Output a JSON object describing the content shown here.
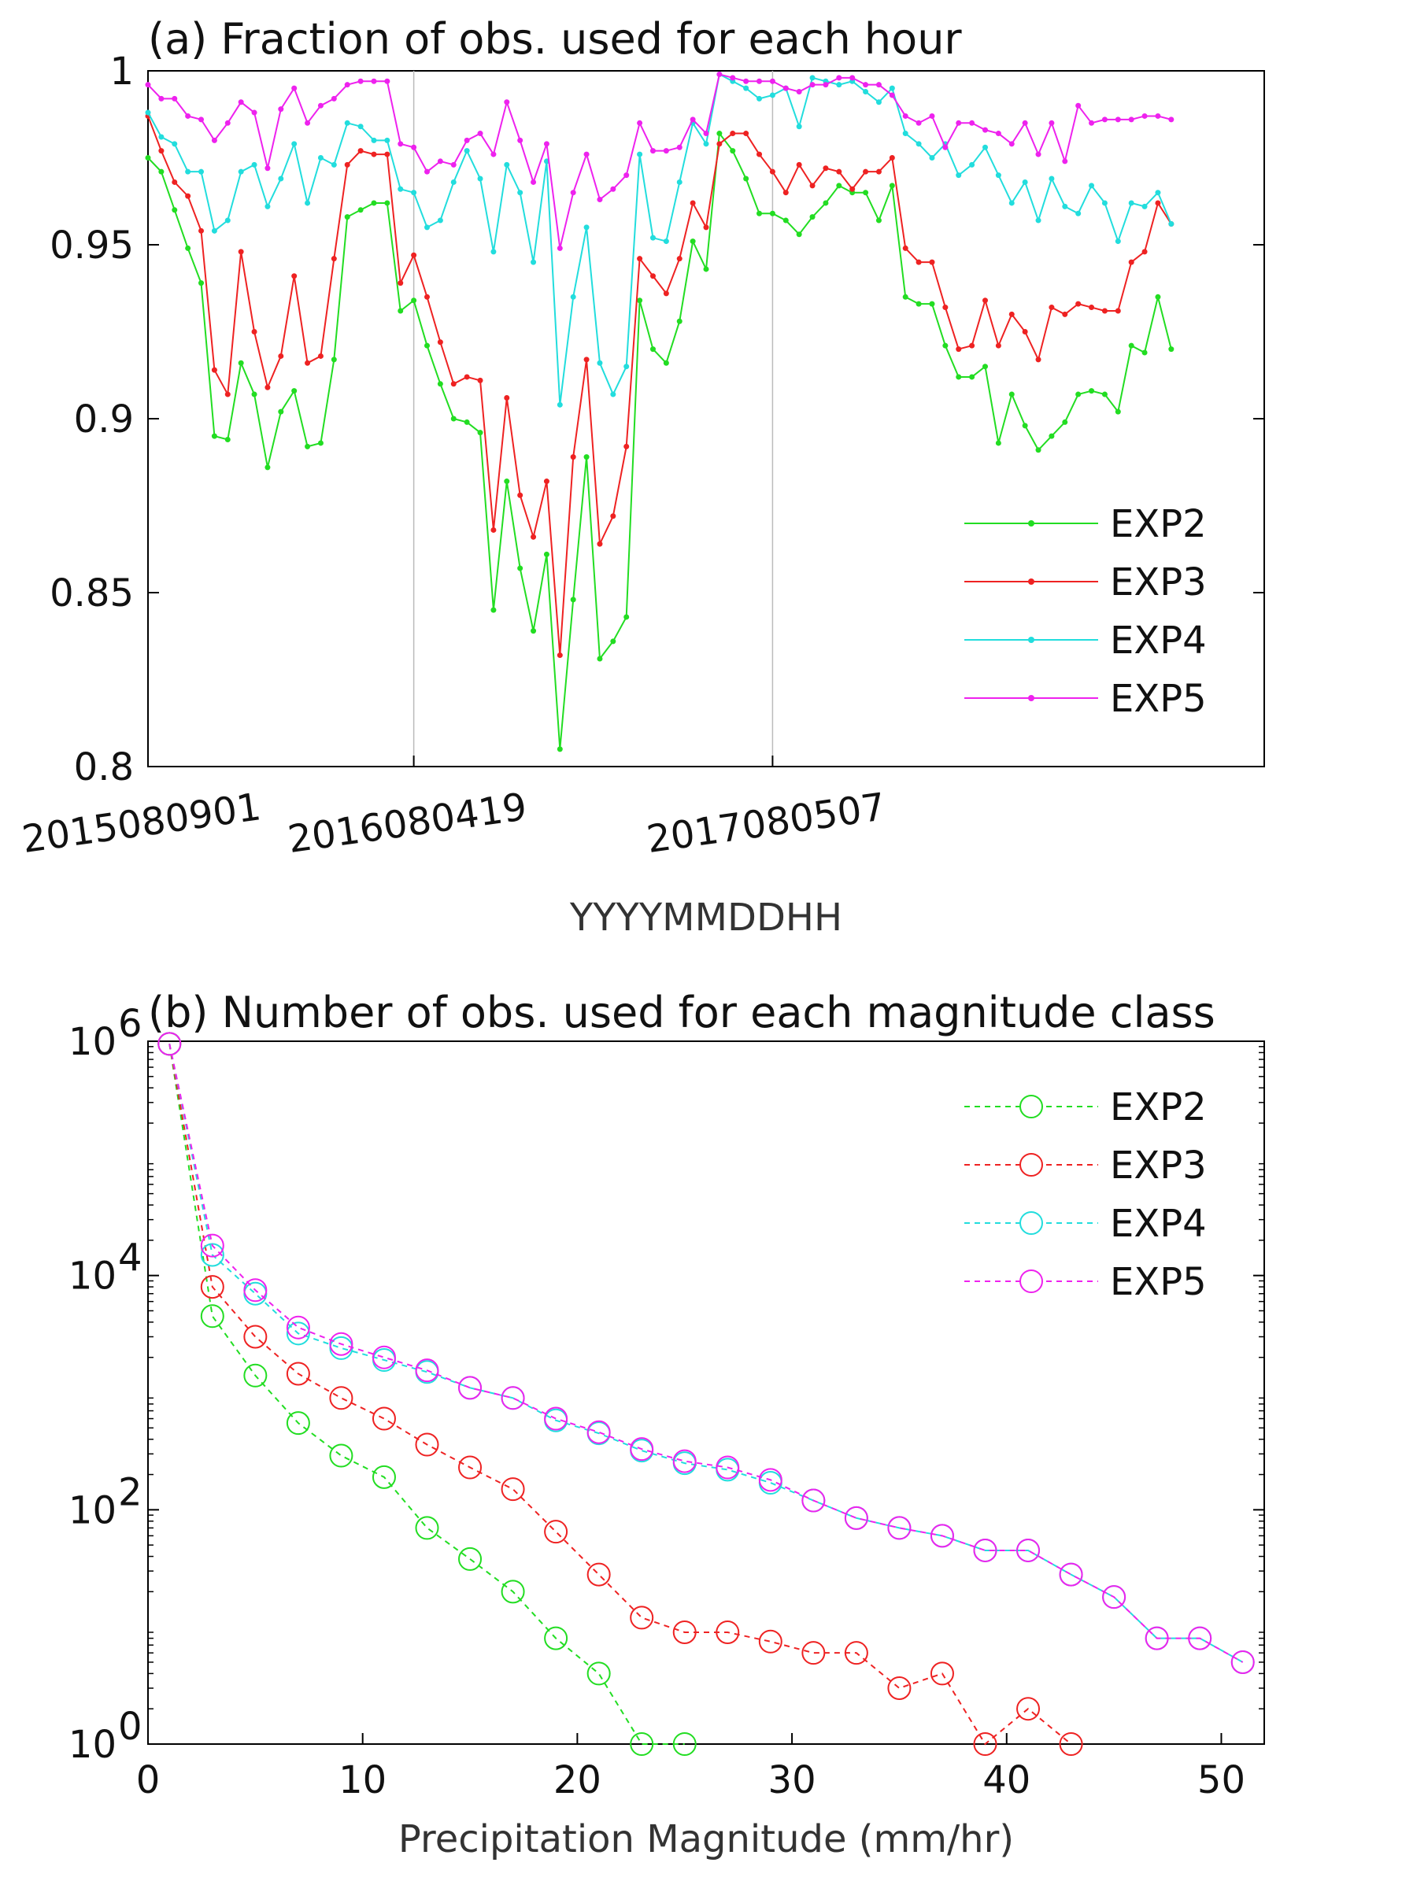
{
  "chart_data": [
    {
      "type": "line",
      "title": "(a) Fraction of obs. used for each hour",
      "xlabel": "YYYYMMDDHH",
      "ylabel": "",
      "ylim": [
        0.8,
        1.0
      ],
      "xlim": [
        1,
        85
      ],
      "yticks": [
        "0.8",
        "0.85",
        "0.9",
        "0.95",
        "1"
      ],
      "yticks_values": [
        0.8,
        0.85,
        0.9,
        0.95,
        1.0
      ],
      "xticks": [
        {
          "x": 1,
          "label": "2015080901"
        },
        {
          "x": 21,
          "label": "2016080419"
        },
        {
          "x": 48,
          "label": "2017080507"
        }
      ],
      "separators_x": [
        21,
        48
      ],
      "grid": false,
      "legend": "bottom-right",
      "series": [
        {
          "name": "EXP2",
          "color": "#22dd22",
          "values": [
            0.975,
            0.971,
            0.96,
            0.949,
            0.939,
            0.895,
            0.894,
            0.916,
            0.907,
            0.886,
            0.902,
            0.908,
            0.892,
            0.893,
            0.917,
            0.958,
            0.96,
            0.962,
            0.962,
            0.931,
            0.934,
            0.921,
            0.91,
            0.9,
            0.899,
            0.896,
            0.845,
            0.882,
            0.857,
            0.839,
            0.861,
            0.805,
            0.848,
            0.889,
            0.831,
            0.836,
            0.843,
            0.934,
            0.92,
            0.916,
            0.928,
            0.951,
            0.943,
            0.982,
            0.977,
            0.969,
            0.959,
            0.959,
            0.957,
            0.953,
            0.958,
            0.962,
            0.967,
            0.965,
            0.965,
            0.957,
            0.967,
            0.935,
            0.933,
            0.933,
            0.921,
            0.912,
            0.912,
            0.915,
            0.893,
            0.907,
            0.898,
            0.891,
            0.895,
            0.899,
            0.907,
            0.908,
            0.907,
            0.902,
            0.921,
            0.919,
            0.935,
            0.92
          ]
        },
        {
          "name": "EXP3",
          "color": "#ee2222",
          "values": [
            0.987,
            0.977,
            0.968,
            0.964,
            0.954,
            0.914,
            0.907,
            0.948,
            0.925,
            0.909,
            0.918,
            0.941,
            0.916,
            0.918,
            0.946,
            0.973,
            0.977,
            0.976,
            0.976,
            0.939,
            0.947,
            0.935,
            0.922,
            0.91,
            0.912,
            0.911,
            0.868,
            0.906,
            0.878,
            0.866,
            0.882,
            0.832,
            0.889,
            0.917,
            0.864,
            0.872,
            0.892,
            0.946,
            0.941,
            0.936,
            0.946,
            0.962,
            0.955,
            0.979,
            0.982,
            0.982,
            0.976,
            0.971,
            0.965,
            0.973,
            0.967,
            0.972,
            0.971,
            0.966,
            0.971,
            0.971,
            0.975,
            0.949,
            0.945,
            0.945,
            0.932,
            0.92,
            0.921,
            0.934,
            0.921,
            0.93,
            0.925,
            0.917,
            0.932,
            0.93,
            0.933,
            0.932,
            0.931,
            0.931,
            0.945,
            0.948,
            0.962,
            0.956
          ]
        },
        {
          "name": "EXP4",
          "color": "#22dddd",
          "values": [
            0.988,
            0.981,
            0.979,
            0.971,
            0.971,
            0.954,
            0.957,
            0.971,
            0.973,
            0.961,
            0.969,
            0.979,
            0.962,
            0.975,
            0.973,
            0.985,
            0.984,
            0.98,
            0.98,
            0.966,
            0.965,
            0.955,
            0.957,
            0.968,
            0.977,
            0.969,
            0.948,
            0.973,
            0.965,
            0.945,
            0.974,
            0.904,
            0.935,
            0.955,
            0.916,
            0.907,
            0.915,
            0.976,
            0.952,
            0.951,
            0.968,
            0.985,
            0.979,
            0.999,
            0.997,
            0.995,
            0.992,
            0.993,
            0.995,
            0.984,
            0.998,
            0.997,
            0.996,
            0.997,
            0.994,
            0.991,
            0.995,
            0.982,
            0.979,
            0.975,
            0.979,
            0.97,
            0.973,
            0.978,
            0.97,
            0.962,
            0.968,
            0.957,
            0.969,
            0.961,
            0.959,
            0.967,
            0.962,
            0.951,
            0.962,
            0.961,
            0.965,
            0.956
          ]
        },
        {
          "name": "EXP5",
          "color": "#ee22ee",
          "values": [
            0.996,
            0.992,
            0.992,
            0.987,
            0.986,
            0.98,
            0.985,
            0.991,
            0.988,
            0.972,
            0.989,
            0.995,
            0.985,
            0.99,
            0.992,
            0.996,
            0.997,
            0.997,
            0.997,
            0.979,
            0.978,
            0.971,
            0.974,
            0.973,
            0.98,
            0.982,
            0.976,
            0.991,
            0.98,
            0.968,
            0.979,
            0.949,
            0.965,
            0.976,
            0.963,
            0.966,
            0.97,
            0.985,
            0.977,
            0.977,
            0.978,
            0.986,
            0.982,
            0.999,
            0.998,
            0.997,
            0.997,
            0.997,
            0.995,
            0.994,
            0.996,
            0.996,
            0.998,
            0.998,
            0.996,
            0.996,
            0.993,
            0.987,
            0.985,
            0.987,
            0.978,
            0.985,
            0.985,
            0.983,
            0.982,
            0.979,
            0.985,
            0.976,
            0.985,
            0.974,
            0.99,
            0.985,
            0.986,
            0.986,
            0.986,
            0.987,
            0.987,
            0.986
          ]
        }
      ]
    },
    {
      "type": "line",
      "title": "(b) Number of obs. used for each magnitude class",
      "xlabel": "Precipitation Magnitude (mm/hr)",
      "ylabel": "",
      "yscale": "log",
      "ylim": [
        1,
        1000000
      ],
      "xlim": [
        0,
        52
      ],
      "xticks": [
        0,
        10,
        20,
        30,
        40,
        50
      ],
      "yticks": [
        {
          "base": "10",
          "exp": "0",
          "value": 1
        },
        {
          "base": "10",
          "exp": "2",
          "value": 100
        },
        {
          "base": "10",
          "exp": "4",
          "value": 10000
        },
        {
          "base": "10",
          "exp": "6",
          "value": 1000000
        }
      ],
      "grid": false,
      "legend": "top-right",
      "x": [
        1,
        3,
        5,
        7,
        9,
        11,
        13,
        15,
        17,
        19,
        21,
        23,
        25,
        27,
        29,
        31,
        33,
        35,
        37,
        39,
        41,
        43,
        45,
        47,
        49,
        51
      ],
      "series": [
        {
          "name": "EXP2",
          "color": "#22dd22",
          "values": [
            950000,
            4500,
            1400,
            550,
            290,
            190,
            70,
            38,
            20,
            8,
            4,
            1,
            1,
            null,
            null,
            null,
            null,
            null,
            null,
            null,
            null,
            null,
            null,
            null,
            null,
            null
          ]
        },
        {
          "name": "EXP3",
          "color": "#ee2222",
          "values": [
            950000,
            8000,
            3000,
            1450,
            900,
            600,
            360,
            230,
            150,
            65,
            28,
            12,
            9,
            9,
            7.5,
            6,
            6,
            3,
            4,
            1,
            2,
            1,
            null,
            null,
            null,
            null
          ]
        },
        {
          "name": "EXP4",
          "color": "#22dddd",
          "values": [
            950000,
            15000,
            7000,
            3200,
            2400,
            1900,
            1500,
            1100,
            900,
            580,
            450,
            320,
            250,
            220,
            170,
            120,
            85,
            70,
            60,
            45,
            45,
            28,
            18,
            8,
            8,
            5
          ]
        },
        {
          "name": "EXP5",
          "color": "#ee22ee",
          "values": [
            950000,
            18000,
            7500,
            3600,
            2600,
            2000,
            1550,
            1100,
            900,
            600,
            460,
            330,
            260,
            230,
            180,
            120,
            85,
            70,
            60,
            45,
            45,
            28,
            18,
            8,
            8,
            5
          ]
        }
      ]
    }
  ]
}
